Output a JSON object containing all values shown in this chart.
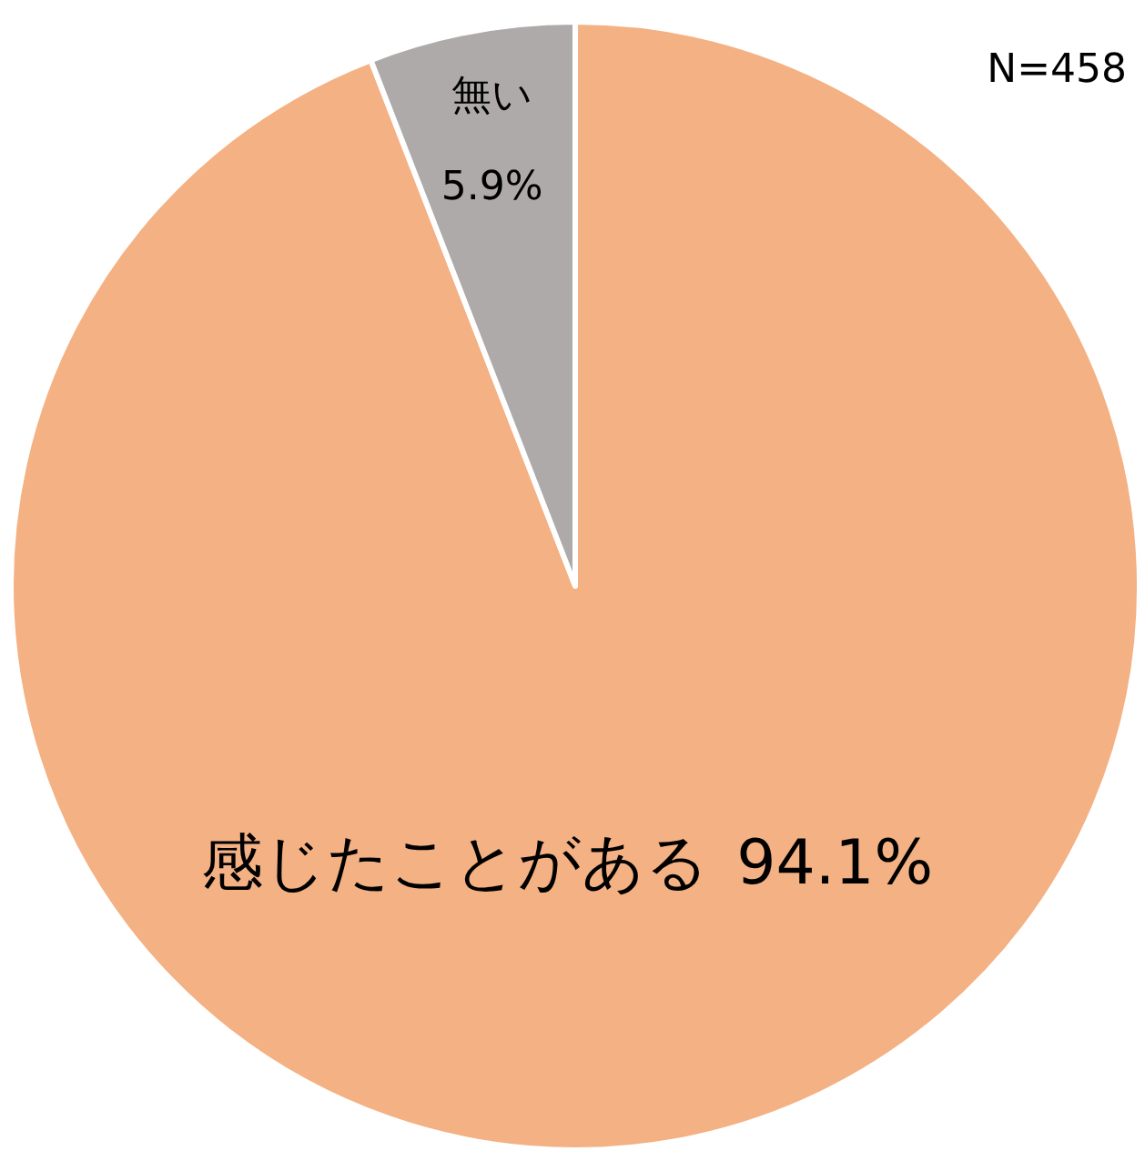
{
  "chart_data": {
    "type": "pie",
    "categories": [
      "感じたことがある",
      "無い"
    ],
    "values": [
      94.1,
      5.9
    ],
    "value_labels": [
      "94.1%",
      "5.9%"
    ],
    "colors": [
      "#f4b183",
      "#aeaaaa"
    ],
    "annotations": [
      "N=458"
    ]
  }
}
